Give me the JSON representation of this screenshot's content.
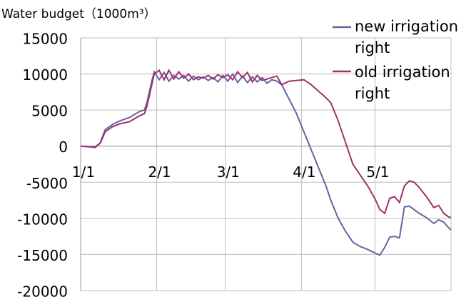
{
  "chart_data": {
    "type": "line",
    "title": "Water budget（1000m³）",
    "x": [
      0,
      4,
      6,
      8,
      10,
      13,
      16,
      20,
      24,
      26,
      27,
      29,
      30,
      32,
      34,
      36,
      38,
      40,
      42,
      44,
      46,
      48,
      50,
      52,
      54,
      56,
      58,
      60,
      62,
      64,
      66,
      68,
      70,
      72,
      74,
      76,
      78,
      80,
      82,
      85,
      88,
      91,
      94,
      97,
      100,
      102,
      105,
      108,
      111,
      114,
      117,
      120,
      122,
      124,
      126,
      128,
      130,
      132,
      134,
      136,
      138,
      141,
      144,
      146,
      148,
      150,
      151
    ],
    "series": [
      {
        "name": "new irrigation right",
        "color": "#6464a0",
        "values": [
          0,
          -100,
          -200,
          500,
          2300,
          3000,
          3500,
          4000,
          4800,
          5000,
          6000,
          9000,
          10300,
          9200,
          10200,
          9000,
          9800,
          9300,
          9800,
          9000,
          9700,
          9200,
          9600,
          9100,
          9500,
          8900,
          9800,
          9000,
          10000,
          8800,
          9700,
          8800,
          9600,
          8900,
          9500,
          8700,
          9200,
          9000,
          8500,
          6500,
          4500,
          2000,
          -500,
          -3000,
          -5500,
          -7500,
          -10000,
          -11800,
          -13300,
          -13900,
          -14300,
          -14800,
          -15100,
          -14000,
          -12600,
          -12500,
          -12700,
          -8400,
          -8300,
          -8800,
          -9300,
          -9900,
          -10700,
          -10200,
          -10500,
          -11300,
          -11600
        ]
      },
      {
        "name": "old irrigation right",
        "color": "#a0306a",
        "values": [
          0,
          -100,
          -50,
          400,
          2000,
          2700,
          3100,
          3400,
          4200,
          4500,
          5500,
          8500,
          10000,
          10500,
          9200,
          10500,
          9300,
          10300,
          9400,
          10000,
          9200,
          9600,
          9400,
          9800,
          9300,
          9900,
          9500,
          9900,
          9200,
          10300,
          9500,
          10200,
          8900,
          9800,
          9100,
          9300,
          9500,
          9700,
          8500,
          9000,
          9100,
          9200,
          8500,
          7600,
          6700,
          6000,
          3500,
          500,
          -2500,
          -4000,
          -5500,
          -7300,
          -8800,
          -9300,
          -7200,
          -7000,
          -7800,
          -5500,
          -4800,
          -5000,
          -5700,
          -7000,
          -8500,
          -8200,
          -9300,
          -9800,
          -9900
        ]
      }
    ],
    "xlim": [
      0,
      151
    ],
    "xticks": [
      {
        "value": 0,
        "label": "1/1"
      },
      {
        "value": 31,
        "label": "2/1"
      },
      {
        "value": 59,
        "label": "3/1"
      },
      {
        "value": 90,
        "label": "4/1"
      },
      {
        "value": 120,
        "label": "5/1"
      }
    ],
    "ylim": [
      -20000,
      15000
    ],
    "yticks": [
      15000,
      10000,
      5000,
      0,
      -5000,
      -10000,
      -15000,
      -20000
    ],
    "grid": true,
    "legend": "right"
  }
}
